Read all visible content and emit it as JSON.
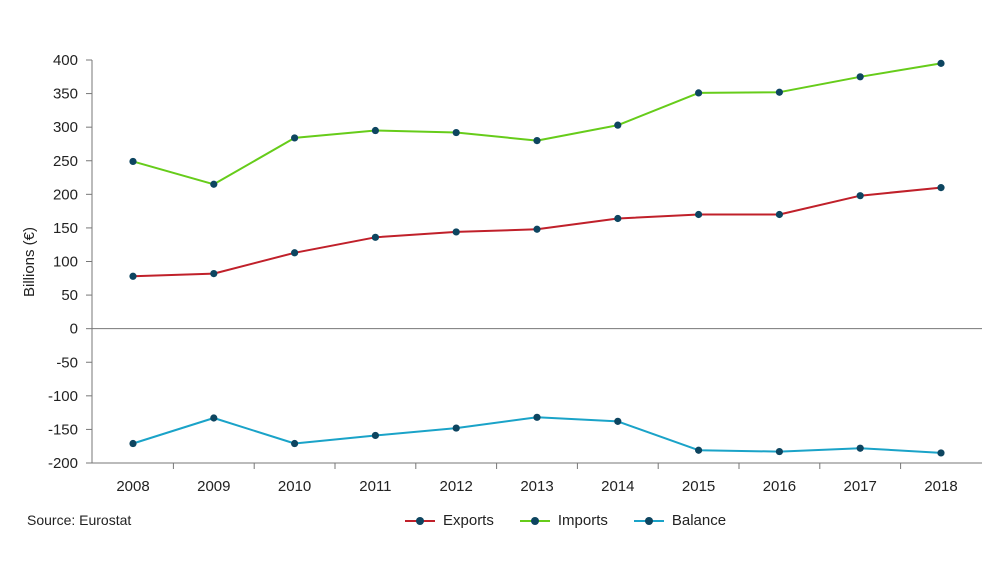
{
  "chart_data": {
    "type": "line",
    "ylabel": "Billions (€)",
    "ylim": [
      -200,
      400
    ],
    "yticks": [
      400,
      350,
      300,
      250,
      200,
      150,
      100,
      50,
      0,
      -50,
      -100,
      -150,
      -200
    ],
    "categories": [
      "2008",
      "2009",
      "2010",
      "2011",
      "2012",
      "2013",
      "2014",
      "2015",
      "2016",
      "2017",
      "2018"
    ],
    "marker_color": "#0d4560",
    "legend_position": "bottom",
    "series": [
      {
        "name": "Exports",
        "color": "#c0202a",
        "values": [
          78,
          82,
          113,
          136,
          144,
          148,
          164,
          170,
          170,
          198,
          210
        ]
      },
      {
        "name": "Imports",
        "color": "#66cc1a",
        "values": [
          249,
          215,
          284,
          295,
          292,
          280,
          303,
          351,
          352,
          375,
          395
        ]
      },
      {
        "name": "Balance",
        "color": "#1aa3c8",
        "values": [
          -171,
          -133,
          -171,
          -159,
          -148,
          -132,
          -138,
          -181,
          -183,
          -178,
          -185
        ]
      }
    ]
  },
  "source": "Source: Eurostat"
}
